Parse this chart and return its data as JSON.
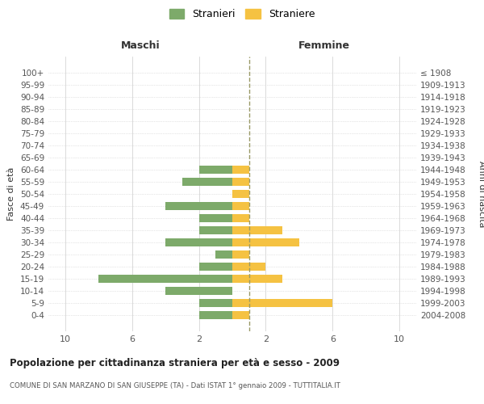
{
  "age_groups": [
    "100+",
    "95-99",
    "90-94",
    "85-89",
    "80-84",
    "75-79",
    "70-74",
    "65-69",
    "60-64",
    "55-59",
    "50-54",
    "45-49",
    "40-44",
    "35-39",
    "30-34",
    "25-29",
    "20-24",
    "15-19",
    "10-14",
    "5-9",
    "0-4"
  ],
  "birth_years": [
    "≤ 1908",
    "1909-1913",
    "1914-1918",
    "1919-1923",
    "1924-1928",
    "1929-1933",
    "1934-1938",
    "1939-1943",
    "1944-1948",
    "1949-1953",
    "1954-1958",
    "1959-1963",
    "1964-1968",
    "1969-1973",
    "1974-1978",
    "1979-1983",
    "1984-1988",
    "1989-1993",
    "1994-1998",
    "1999-2003",
    "2004-2008"
  ],
  "males": [
    0,
    0,
    0,
    0,
    0,
    0,
    0,
    0,
    2,
    3,
    0,
    4,
    2,
    2,
    4,
    1,
    2,
    8,
    4,
    2,
    2
  ],
  "females": [
    0,
    0,
    0,
    0,
    0,
    0,
    0,
    0,
    1,
    1,
    1,
    1,
    1,
    3,
    4,
    1,
    2,
    3,
    0,
    6,
    1
  ],
  "male_color": "#7daa6a",
  "female_color": "#f5c242",
  "male_label": "Stranieri",
  "female_label": "Straniere",
  "xlim": 11,
  "title": "Popolazione per cittadinanza straniera per età e sesso - 2009",
  "subtitle": "COMUNE DI SAN MARZANO DI SAN GIUSEPPE (TA) - Dati ISTAT 1° gennaio 2009 - TUTTITALIA.IT",
  "ylabel_left": "Fasce di età",
  "ylabel_right": "Anni di nascita",
  "header_left": "Maschi",
  "header_right": "Femmine",
  "bg_color": "#ffffff",
  "grid_color": "#cccccc",
  "dashed_line_color": "#999966"
}
